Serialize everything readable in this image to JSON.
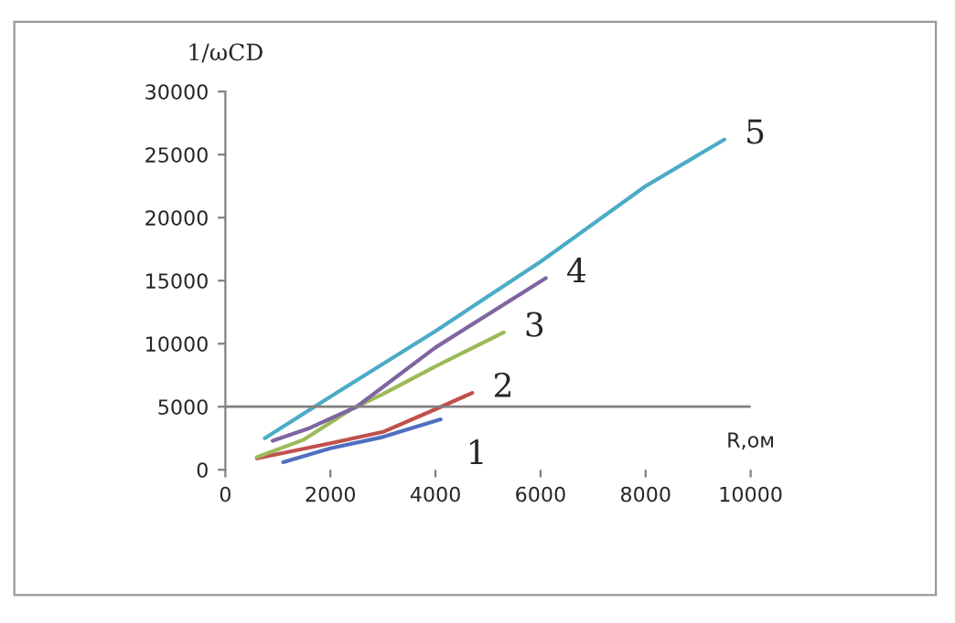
{
  "chart_data": {
    "type": "line",
    "xlabel": "R,ом",
    "ylabel": "1/ωCD",
    "xlim": [
      0,
      10000
    ],
    "xticks": [
      0,
      2000,
      4000,
      6000,
      8000,
      10000
    ],
    "ylim": [
      0,
      30000
    ],
    "yticks": [
      0,
      5000,
      10000,
      15000,
      20000,
      25000,
      30000
    ],
    "grid": false,
    "legend": false,
    "marker": "none",
    "line_style": "solid",
    "ref_lines": [
      {
        "axis": "y",
        "value": 5000,
        "color": "#808080"
      }
    ],
    "series": [
      {
        "name": "1",
        "color": "#4f6fc0",
        "x": [
          1100,
          2000,
          3000,
          4100
        ],
        "values": [
          600,
          1700,
          2600,
          4000
        ]
      },
      {
        "name": "2",
        "color": "#c0504d",
        "x": [
          600,
          2000,
          3000,
          4000,
          4700
        ],
        "values": [
          900,
          2100,
          3000,
          4800,
          6100
        ]
      },
      {
        "name": "3",
        "color": "#9bbb59",
        "x": [
          600,
          1500,
          2400,
          3000,
          4000,
          5300
        ],
        "values": [
          1000,
          2400,
          4800,
          6000,
          8200,
          10900
        ]
      },
      {
        "name": "4",
        "color": "#8064a2",
        "x": [
          900,
          1600,
          2500,
          4000,
          6100
        ],
        "values": [
          2300,
          3300,
          5000,
          9700,
          15200
        ]
      },
      {
        "name": "5",
        "color": "#4bacc6",
        "x": [
          750,
          2000,
          4000,
          6000,
          8000,
          9500
        ],
        "values": [
          2500,
          5800,
          11000,
          16500,
          22500,
          26200
        ]
      }
    ]
  }
}
